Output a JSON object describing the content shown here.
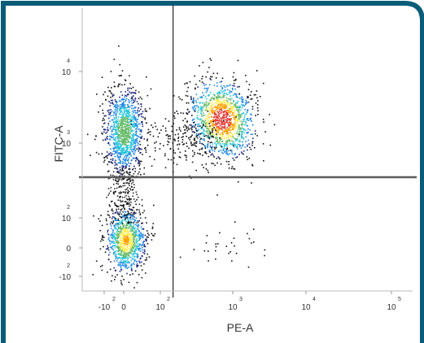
{
  "chart_data": {
    "type": "scatter",
    "subtype": "flow-cytometry-density-dot-plot",
    "title": "",
    "xlabel": "PE-A",
    "ylabel": "FITC-A",
    "x_scale": "biexponential",
    "y_scale": "biexponential",
    "x_ticks": [
      {
        "base": "-10",
        "exp": "2",
        "value": -100
      },
      {
        "base": "0",
        "exp": "",
        "value": 0
      },
      {
        "base": "10",
        "exp": "2",
        "value": 100
      },
      {
        "base": "10",
        "exp": "3",
        "value": 1000
      },
      {
        "base": "10",
        "exp": "4",
        "value": 10000
      },
      {
        "base": "10",
        "exp": "5",
        "value": 100000
      }
    ],
    "y_ticks": [
      {
        "base": "-10",
        "exp": "2",
        "value": -100
      },
      {
        "base": "0",
        "exp": "",
        "value": 0
      },
      {
        "base": "10",
        "exp": "2",
        "value": 100
      },
      {
        "base": "10",
        "exp": "3",
        "value": 1000
      },
      {
        "base": "10",
        "exp": "4",
        "value": 10000
      }
    ],
    "gates": {
      "vertical_x": 150,
      "horizontal_y": 350
    },
    "quadrant_lines_color": "#5a5a5a",
    "populations": [
      {
        "name": "",
        "center": {
          "x": 0,
          "y": 1500
        },
        "spread": "dense",
        "color_peak": "#1565c0"
      },
      {
        "name": "",
        "center": {
          "x": 0,
          "y": 0
        },
        "spread": "dense",
        "color_peak": "#ffd000"
      },
      {
        "name": "",
        "center": {
          "x": 700,
          "y": 2200
        },
        "spread": "dense",
        "color_peak": "#e02000"
      },
      {
        "name": "",
        "center": {
          "x": 300,
          "y": 1200
        },
        "spread": "sparse",
        "color_peak": "#000000"
      },
      {
        "name": "",
        "center": {
          "x": 800,
          "y": 10
        },
        "spread": "sparse",
        "color_peak": "#000000"
      }
    ],
    "colormap": [
      "#1a237e",
      "#1e88e5",
      "#26c6da",
      "#66bb6a",
      "#ffee58",
      "#ffa000",
      "#e53935"
    ],
    "grid": false,
    "legend": "none"
  },
  "frame": {
    "border_color": "#0a5c78",
    "background": "#ffffff"
  }
}
